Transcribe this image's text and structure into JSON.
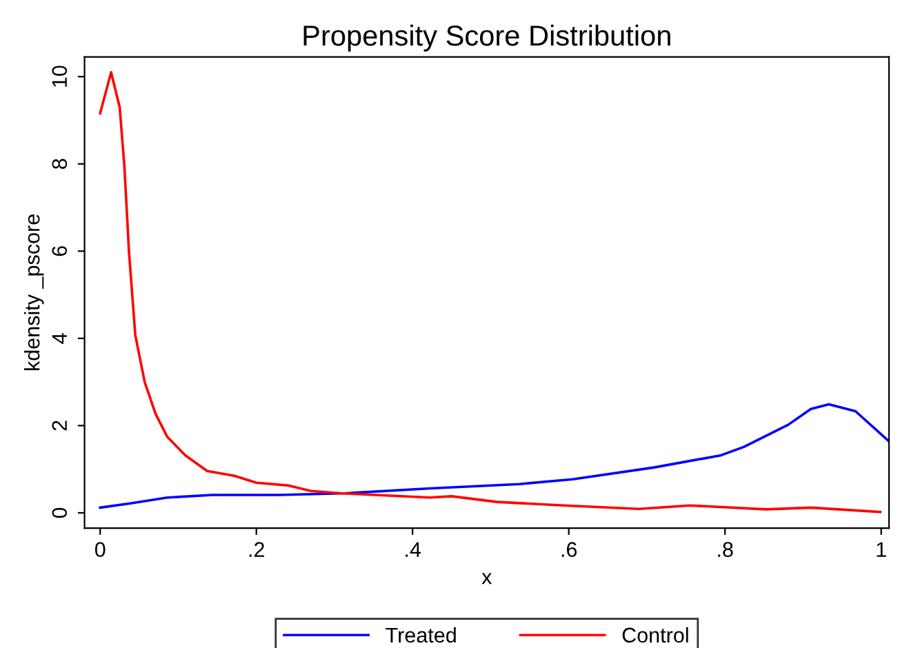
{
  "chart_data": {
    "type": "line",
    "title": "Propensity Score Distribution",
    "xlabel": "x",
    "ylabel": "kdensity _pscore",
    "series": [
      {
        "name": "Treated",
        "color": "#0000ff",
        "x": [
          0,
          0.04,
          0.086,
          0.143,
          0.229,
          0.315,
          0.422,
          0.537,
          0.605,
          0.709,
          0.795,
          0.824,
          0.881,
          0.91,
          0.933,
          0.967,
          1.01
        ],
        "values": [
          0.12,
          0.22,
          0.35,
          0.41,
          0.41,
          0.45,
          0.56,
          0.66,
          0.77,
          1.04,
          1.32,
          1.51,
          2.02,
          2.38,
          2.49,
          2.33,
          1.64
        ]
      },
      {
        "name": "Control",
        "color": "#ff0000",
        "x": [
          0,
          0.014,
          0.025,
          0.031,
          0.037,
          0.045,
          0.057,
          0.071,
          0.086,
          0.109,
          0.137,
          0.172,
          0.2,
          0.24,
          0.27,
          0.307,
          0.422,
          0.45,
          0.508,
          0.594,
          0.69,
          0.755,
          0.853,
          0.91,
          0.999
        ],
        "values": [
          9.16,
          10.1,
          9.3,
          7.95,
          5.96,
          4.07,
          3.0,
          2.27,
          1.74,
          1.32,
          0.96,
          0.85,
          0.69,
          0.63,
          0.5,
          0.45,
          0.35,
          0.38,
          0.25,
          0.17,
          0.09,
          0.17,
          0.08,
          0.12,
          0.02
        ]
      }
    ],
    "xlim": [
      -0.02,
      1.01
    ],
    "ylim": [
      -0.35,
      10.45
    ],
    "xticks": [
      0,
      {
        "value": 0.2,
        "label": ".2"
      },
      {
        "value": 0.4,
        "label": ".4"
      },
      {
        "value": 0.6,
        "label": ".6"
      },
      {
        "value": 0.8,
        "label": ".8"
      },
      1
    ],
    "yticks": [
      0,
      2,
      4,
      6,
      8,
      10
    ],
    "grid": false,
    "legend": "bottom",
    "marker": "none",
    "line_style": "solid"
  }
}
